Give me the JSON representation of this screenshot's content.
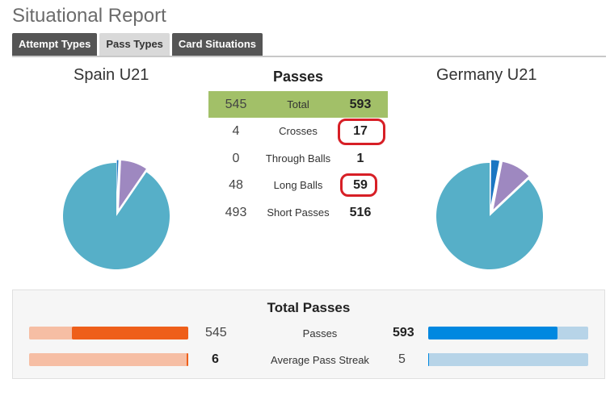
{
  "page": {
    "title": "Situational Report"
  },
  "tabs": [
    {
      "label": "Attempt Types"
    },
    {
      "label": "Pass Types"
    },
    {
      "label": "Card Situations"
    }
  ],
  "teams": {
    "home": "Spain U21",
    "away": "Germany U21"
  },
  "passes_table": {
    "title": "Passes",
    "rows": [
      {
        "home": "545",
        "label": "Total",
        "away": "593"
      },
      {
        "home": "4",
        "label": "Crosses",
        "away": "17"
      },
      {
        "home": "0",
        "label": "Through Balls",
        "away": "1"
      },
      {
        "home": "48",
        "label": "Long Balls",
        "away": "59"
      },
      {
        "home": "493",
        "label": "Short Passes",
        "away": "516"
      }
    ]
  },
  "chart_data": [
    {
      "type": "pie",
      "team": "Spain U21",
      "slices": [
        {
          "category": "Short Passes",
          "value": 493,
          "color": "#56afc8"
        },
        {
          "category": "Long Balls",
          "value": 48,
          "color": "#9e88c0"
        },
        {
          "category": "Crosses",
          "value": 4,
          "color": "#1b76c2"
        }
      ]
    },
    {
      "type": "pie",
      "team": "Germany U21",
      "slices": [
        {
          "category": "Short Passes",
          "value": 516,
          "color": "#56afc8"
        },
        {
          "category": "Long Balls",
          "value": 59,
          "color": "#9e88c0"
        },
        {
          "category": "Crosses",
          "value": 17,
          "color": "#1b76c2"
        },
        {
          "category": "Through Balls",
          "value": 1,
          "color": "#1b76c2"
        }
      ]
    }
  ],
  "total_passes": {
    "title": "Total Passes",
    "rows": [
      {
        "label": "Passes",
        "home_value": "545",
        "away_value": "593",
        "home_fraction": 0.73,
        "away_fraction": 0.81
      },
      {
        "label": "Average Pass Streak",
        "home_value": "6",
        "away_value": "5",
        "home_fraction": 0.01,
        "away_fraction": 0.005
      }
    ]
  },
  "colors": {
    "home_bar": "#ee5f1a",
    "home_bar_track": "#f6bea4",
    "away_bar": "#0088e0",
    "away_bar_track": "#b7d4e8",
    "total_row": "#a2c068",
    "highlight_circle": "#d71f26"
  }
}
